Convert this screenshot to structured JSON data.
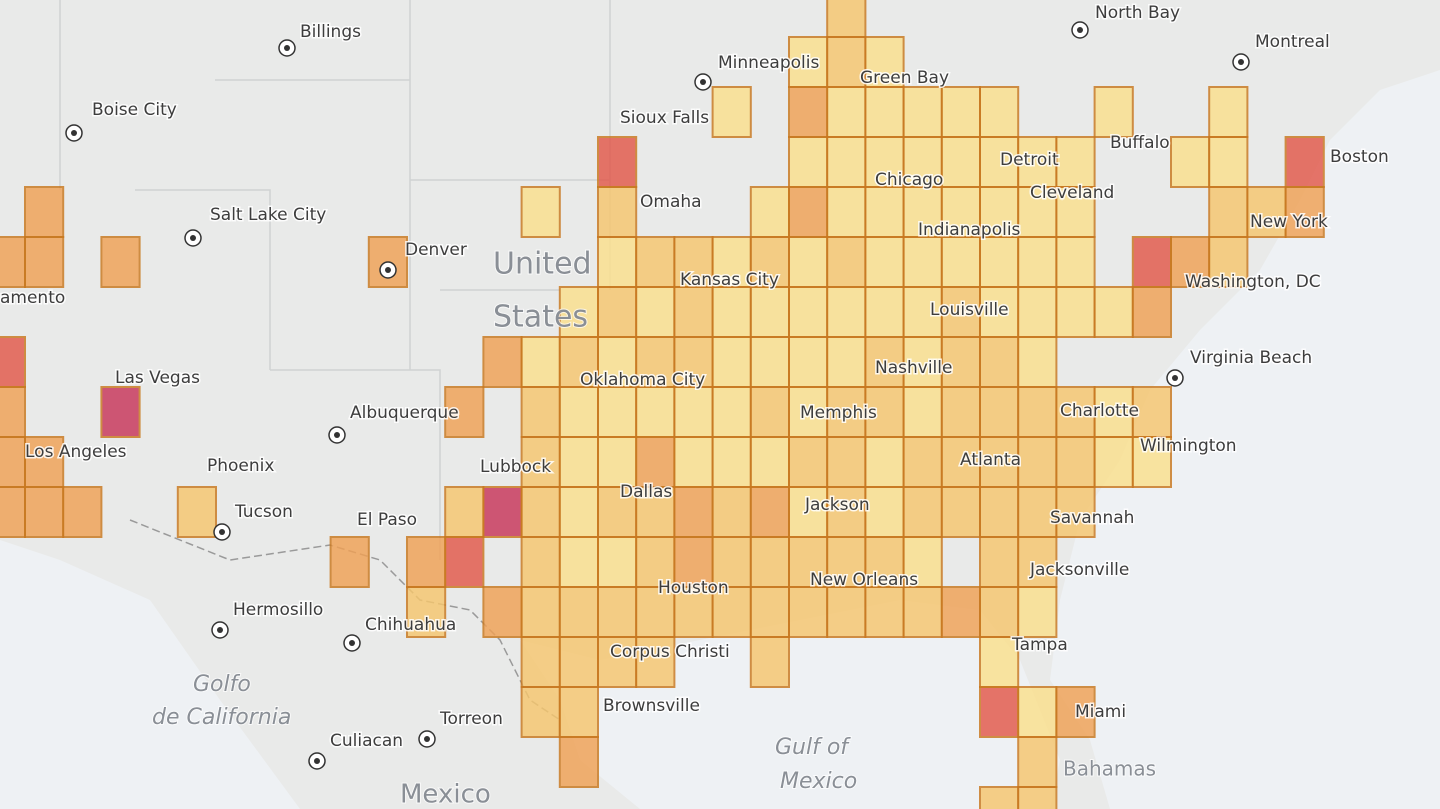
{
  "map": {
    "cities": [
      "Billings",
      "Boise City",
      "Salt Lake City",
      "Denver",
      "amento",
      "Las Vegas",
      "Los Angeles",
      "Phoenix",
      "Tucson",
      "El Paso",
      "Albuquerque",
      "Lubbock",
      "Hermosillo",
      "Chihuahua",
      "Torreon",
      "Culiacan",
      "Brownsville",
      "Corpus Christi",
      "Houston",
      "Dallas",
      "Oklahoma City",
      "Kansas City",
      "Omaha",
      "Sioux Falls",
      "Minneapolis",
      "Green Bay",
      "Chicago",
      "Detroit",
      "Cleveland",
      "Buffalo",
      "North Bay",
      "Montreal",
      "Boston",
      "New York",
      "Washington, DC",
      "Indianapolis",
      "Louisville",
      "Nashville",
      "Memphis",
      "Atlanta",
      "Charlotte",
      "Virginia Beach",
      "Wilmington",
      "Savannah",
      "Jacksonville",
      "Tampa",
      "Miami",
      "New Orleans",
      "Jackson"
    ],
    "regions": [
      "United",
      "States",
      "Mexico",
      "Golfo",
      "de California",
      "Gulf of",
      "Mexico",
      "Bahamas"
    ]
  }
}
